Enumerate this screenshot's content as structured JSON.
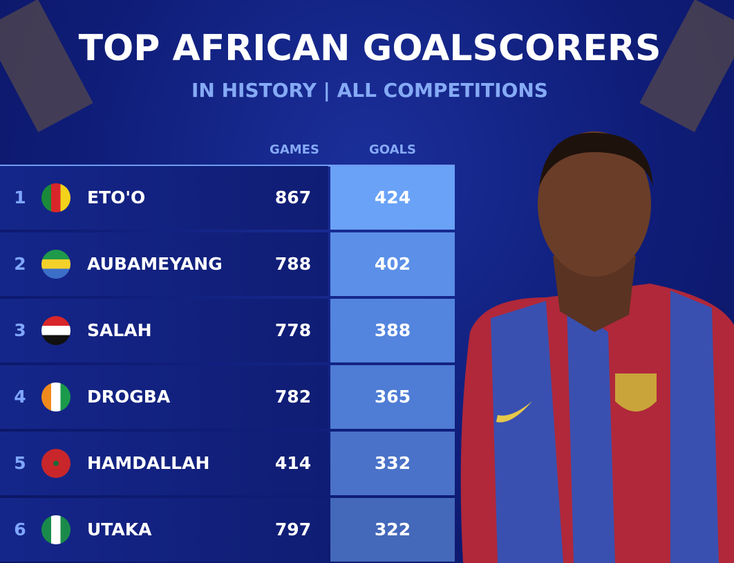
{
  "header": {
    "title": "TOP AFRICAN GOALSCORERS",
    "subtitle": "IN HISTORY | ALL COMPETITIONS"
  },
  "table": {
    "columns": [
      "GAMES",
      "GOALS"
    ],
    "rows": [
      [
        1,
        "ETO'O",
        867,
        424
      ],
      [
        2,
        "AUBAMEYANG",
        788,
        402
      ],
      [
        3,
        "SALAH",
        778,
        388
      ],
      [
        4,
        "DROGBA",
        782,
        365
      ],
      [
        5,
        "HAMDALLAH",
        414,
        332
      ],
      [
        6,
        "UTAKA",
        797,
        322
      ]
    ]
  }
}
